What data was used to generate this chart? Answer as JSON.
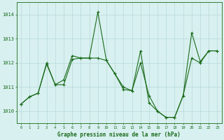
{
  "xlabel": "Graphe pression niveau de la mer (hPa)",
  "hours": [
    0,
    1,
    2,
    3,
    4,
    5,
    6,
    7,
    8,
    9,
    10,
    11,
    12,
    13,
    14,
    15,
    16,
    17,
    18,
    19,
    20,
    21,
    22,
    23
  ],
  "series1": [
    1010.3,
    1010.6,
    1010.75,
    1012.0,
    1011.1,
    1011.3,
    1012.3,
    1012.2,
    1012.2,
    1014.1,
    1012.1,
    1011.55,
    1010.9,
    1010.85,
    1012.5,
    1010.35,
    1010.0,
    1009.75,
    1009.75,
    1010.65,
    1013.25,
    1012.05,
    1012.5,
    1012.5
  ],
  "series2": [
    1010.3,
    1010.6,
    1010.75,
    1011.95,
    1011.1,
    1011.1,
    1012.15,
    1012.2,
    1012.2,
    1012.2,
    1012.1,
    1011.55,
    1011.0,
    1010.85,
    1012.0,
    1010.65,
    1010.0,
    1009.75,
    1009.75,
    1010.65,
    1012.2,
    1012.0,
    1012.5,
    1012.5
  ],
  "line_color": "#1a6b1a",
  "bg_color": "#d8f0f0",
  "grid_color": "#b8d8d8",
  "tick_label_color": "#1a6b1a",
  "ylim": [
    1009.5,
    1014.5
  ],
  "yticks": [
    1010,
    1011,
    1012,
    1013,
    1014
  ],
  "ytick_labels": [
    "1010",
    "1011",
    "1012",
    "1013",
    "1014"
  ]
}
